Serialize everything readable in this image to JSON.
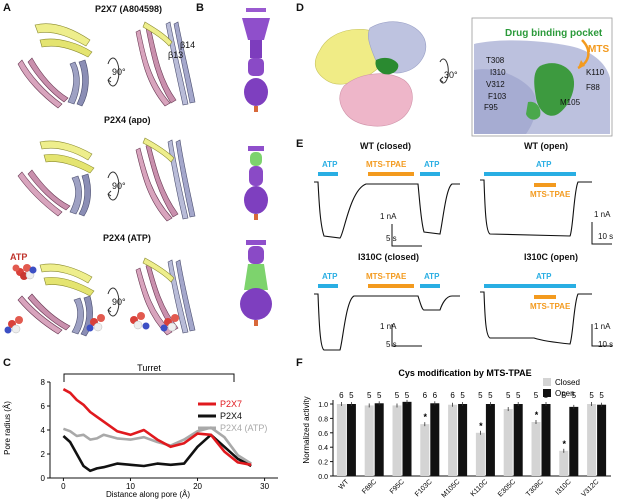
{
  "panels": {
    "a": "A",
    "b": "B",
    "c": "C",
    "d": "D",
    "e": "E",
    "f": "F"
  },
  "panel_a": {
    "titles": [
      "P2X7 (A804598)",
      "P2X4 (apo)",
      "P2X4 (ATP)"
    ],
    "rotation": "90°",
    "beta13": "β13",
    "beta14": "β14",
    "atp": "ATP"
  },
  "panel_d": {
    "inset_title": "Drug binding pocket",
    "rotation": "30°",
    "mts": "MTS",
    "residues": [
      "T308",
      "I310",
      "V312",
      "F103",
      "F95",
      "K110",
      "F88",
      "M105"
    ]
  },
  "panel_e": {
    "traces": [
      {
        "title": "WT (closed)",
        "labels": [
          "ATP",
          "MTS-TPAE",
          "ATP"
        ],
        "scale_y": "1 nA",
        "scale_x": "5 s"
      },
      {
        "title": "WT (open)",
        "labels": [
          "ATP",
          "MTS-TPAE"
        ],
        "scale_y": "1 nA",
        "scale_x": "10 s"
      },
      {
        "title": "I310C (closed)",
        "labels": [
          "ATP",
          "MTS-TPAE",
          "ATP"
        ],
        "scale_y": "1 nA",
        "scale_x": "5 s"
      },
      {
        "title": "I310C (open)",
        "labels": [
          "ATP",
          "MTS-TPAE"
        ],
        "scale_y": "1 nA",
        "scale_x": "10 s"
      }
    ],
    "colors": {
      "atp": "#29aee3",
      "mts": "#f39a1e"
    }
  },
  "chart_data": [
    {
      "type": "line",
      "title": "Turret",
      "xlabel": "Distance along pore (Å)",
      "ylabel": "Pore radius (Å)",
      "xlim": [
        -2,
        32
      ],
      "ylim": [
        0,
        8
      ],
      "xticks": [
        0,
        10,
        20,
        30
      ],
      "yticks": [
        0,
        2,
        4,
        6,
        8
      ],
      "series": [
        {
          "name": "P2X7",
          "color": "#e0191e",
          "x": [
            0,
            1,
            2,
            3,
            4,
            5,
            6,
            8,
            10,
            12,
            14,
            16,
            18,
            20,
            22,
            24,
            26,
            28
          ],
          "y": [
            7.4,
            7.1,
            6.5,
            6.1,
            5.5,
            5.1,
            4.7,
            3.9,
            3.6,
            4.0,
            3.2,
            2.6,
            2.9,
            3.7,
            3.6,
            2.2,
            1.3,
            1.1
          ]
        },
        {
          "name": "P2X4",
          "color": "#111111",
          "x": [
            0,
            1,
            2,
            3,
            4,
            5,
            6,
            8,
            10,
            12,
            14,
            16,
            18,
            20,
            22,
            24,
            26,
            28
          ],
          "y": [
            3.5,
            3.0,
            2.0,
            1.0,
            0.6,
            0.8,
            0.9,
            1.2,
            1.1,
            1.0,
            1.2,
            1.1,
            1.2,
            2.6,
            3.6,
            2.6,
            1.6,
            1.0
          ]
        },
        {
          "name": "P2X4 (ATP)",
          "color": "#a9a9a9",
          "x": [
            0,
            1,
            2,
            3,
            4,
            5,
            6,
            8,
            10,
            12,
            14,
            16,
            18,
            20,
            22,
            24,
            26,
            28
          ],
          "y": [
            4.1,
            3.9,
            3.5,
            3.6,
            3.2,
            3.3,
            3.6,
            3.3,
            3.2,
            3.4,
            3.0,
            2.7,
            3.2,
            3.9,
            4.2,
            3.4,
            1.9,
            1.2
          ]
        }
      ]
    },
    {
      "type": "bar",
      "title": "Cys modification by MTS-TPAE",
      "ylabel": "Normalized activity",
      "ylim": [
        0,
        1.0
      ],
      "yticks": [
        0,
        0.2,
        0.4,
        0.6,
        0.8,
        1.0
      ],
      "categories": [
        "WT",
        "F88C",
        "F95C",
        "F103C",
        "M105C",
        "K110C",
        "E305C",
        "T308C",
        "I310C",
        "V312C"
      ],
      "series": [
        {
          "name": "Closed",
          "color": "#d4d4d4",
          "values": [
            1.0,
            0.98,
            0.98,
            0.72,
            0.99,
            0.6,
            0.93,
            0.75,
            0.35,
            1.0
          ],
          "n": [
            6,
            5,
            5,
            6,
            6,
            5,
            5,
            5,
            5,
            5
          ]
        },
        {
          "name": "Open",
          "color": "#111111",
          "values": [
            1.0,
            1.01,
            1.03,
            1.01,
            1.0,
            1.0,
            1.0,
            1.0,
            0.96,
            0.99
          ],
          "n": [
            5,
            5,
            5,
            6,
            5,
            5,
            5,
            5,
            5,
            5
          ]
        }
      ],
      "significant": [
        "F103C",
        "K110C",
        "T308C",
        "I310C"
      ],
      "sig_mark": "*"
    }
  ]
}
